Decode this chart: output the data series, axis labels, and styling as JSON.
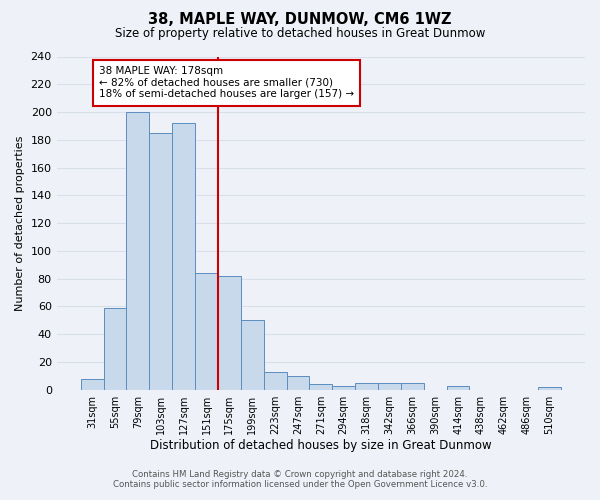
{
  "title": "38, MAPLE WAY, DUNMOW, CM6 1WZ",
  "subtitle": "Size of property relative to detached houses in Great Dunmow",
  "xlabel": "Distribution of detached houses by size in Great Dunmow",
  "ylabel": "Number of detached properties",
  "bar_labels": [
    "31sqm",
    "55sqm",
    "79sqm",
    "103sqm",
    "127sqm",
    "151sqm",
    "175sqm",
    "199sqm",
    "223sqm",
    "247sqm",
    "271sqm",
    "294sqm",
    "318sqm",
    "342sqm",
    "366sqm",
    "390sqm",
    "414sqm",
    "438sqm",
    "462sqm",
    "486sqm",
    "510sqm"
  ],
  "bar_heights": [
    8,
    59,
    200,
    185,
    192,
    84,
    82,
    50,
    13,
    10,
    4,
    3,
    5,
    5,
    5,
    0,
    3,
    0,
    0,
    0,
    2
  ],
  "bar_color": "#c9d9ec",
  "bar_edge_color": "#5b8dc0",
  "vline_x": 5.5,
  "vline_color": "#cc0000",
  "ylim": [
    0,
    240
  ],
  "yticks": [
    0,
    20,
    40,
    60,
    80,
    100,
    120,
    140,
    160,
    180,
    200,
    220,
    240
  ],
  "annotation_title": "38 MAPLE WAY: 178sqm",
  "annotation_line1": "← 82% of detached houses are smaller (730)",
  "annotation_line2": "18% of semi-detached houses are larger (157) →",
  "annotation_box_color": "#cc0000",
  "footer_line1": "Contains HM Land Registry data © Crown copyright and database right 2024.",
  "footer_line2": "Contains public sector information licensed under the Open Government Licence v3.0.",
  "background_color": "#eef2f8",
  "grid_color": "#d8dfe8"
}
